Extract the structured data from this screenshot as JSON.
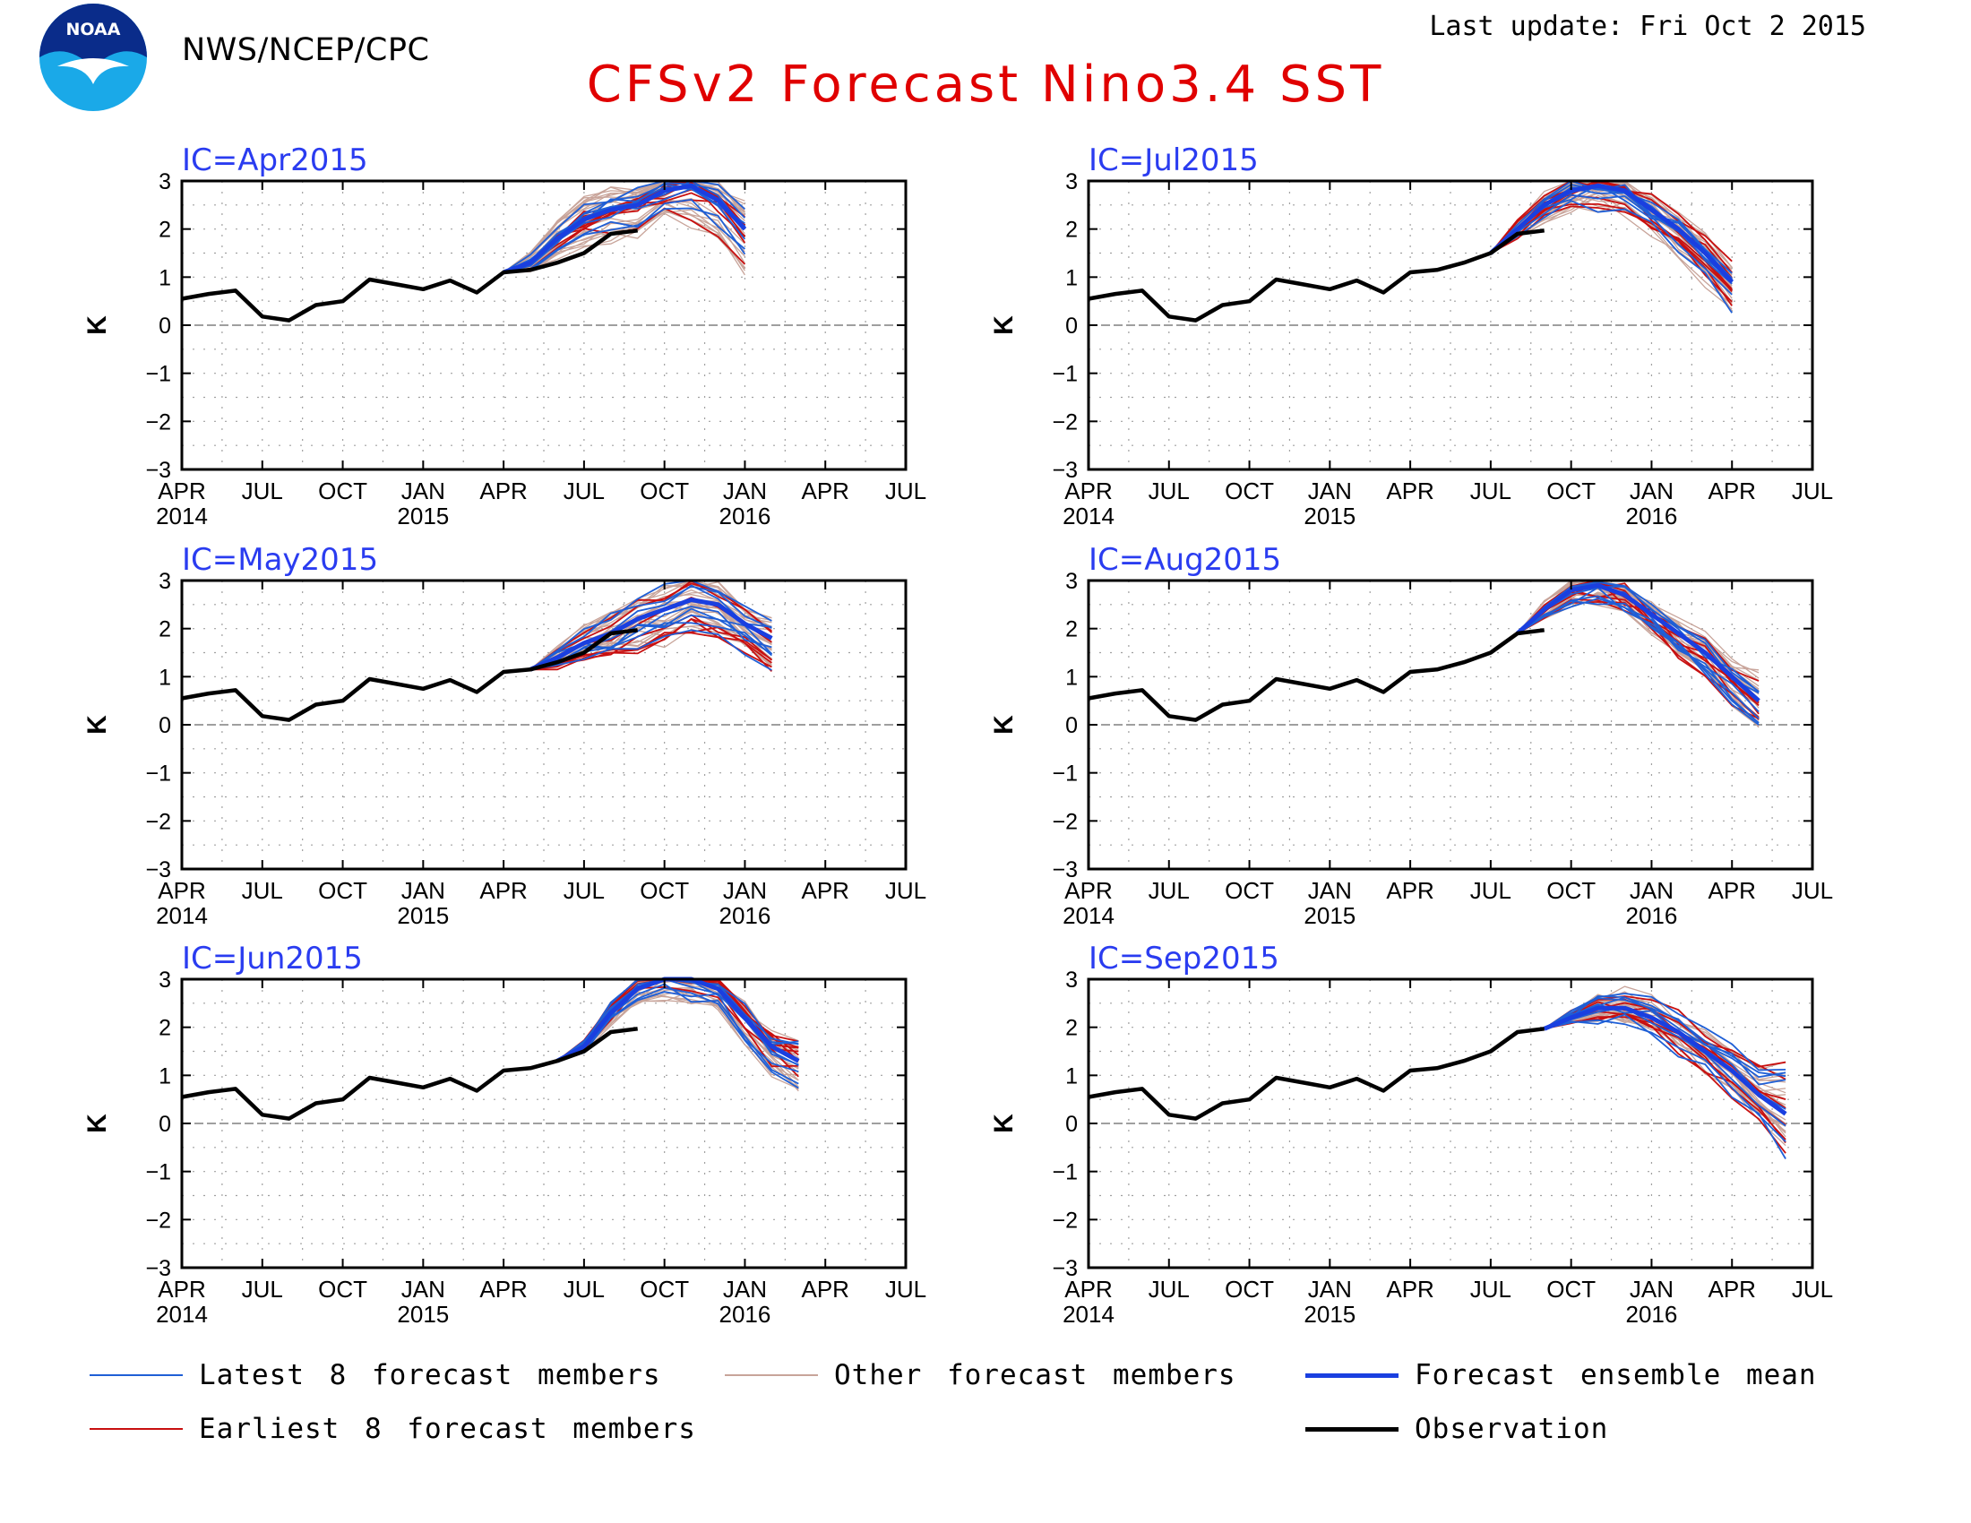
{
  "header": {
    "agency": "NWS/NCEP/CPC",
    "last_update": "Last update: Fri Oct 2 2015",
    "title": "CFSv2 Forecast Nino3.4 SST",
    "logo_text": "NOAA"
  },
  "colors": {
    "latest": "#1f5fd6",
    "earliest": "#c81010",
    "other": "#c8a49a",
    "mean": "#1a3fe0",
    "obs": "#000000",
    "panel_title": "#2a3cf0",
    "main_title": "#e00000"
  },
  "legend": {
    "latest": "Latest 8 forecast members",
    "other": "Other forecast members",
    "mean": "Forecast ensemble mean",
    "earliest": "Earliest 8 forecast members",
    "obs": "Observation"
  },
  "chart_data": {
    "type": "line",
    "ylabel": "K",
    "ylim": [
      -3,
      3
    ],
    "yticks": [
      "3",
      "2",
      "1",
      "0",
      "−1",
      "−2",
      "−3"
    ],
    "xtick_labels": [
      "APR",
      "JUL",
      "OCT",
      "JAN",
      "APR",
      "JUL",
      "OCT",
      "JAN",
      "APR",
      "JUL"
    ],
    "xyear_labels": [
      {
        "month": "APR",
        "year": "2014"
      },
      {
        "month": "JAN",
        "year": "2015"
      },
      {
        "month": "JAN",
        "year": "2016"
      }
    ],
    "xrange": [
      "2014-04",
      "2016-07"
    ],
    "grid": true,
    "observation": {
      "months": [
        "2014-04",
        "2014-05",
        "2014-06",
        "2014-07",
        "2014-08",
        "2014-09",
        "2014-10",
        "2014-11",
        "2014-12",
        "2015-01",
        "2015-02",
        "2015-03",
        "2015-04",
        "2015-05",
        "2015-06",
        "2015-07",
        "2015-08",
        "2015-09"
      ],
      "values": [
        0.55,
        0.65,
        0.72,
        0.18,
        0.1,
        0.42,
        0.5,
        0.95,
        0.85,
        0.75,
        0.93,
        0.68,
        1.1,
        1.15,
        1.3,
        1.5,
        1.9,
        1.97
      ]
    },
    "panels": [
      {
        "title": "IC=Apr2015",
        "obs_end": "2015-09",
        "mean": {
          "start": "2015-04",
          "values": [
            1.1,
            1.3,
            1.8,
            2.2,
            2.4,
            2.5,
            2.8,
            2.9,
            2.6,
            2.0
          ]
        },
        "spread_lo": [
          0,
          0.2,
          0.4,
          0.5,
          0.6,
          0.6,
          0.6,
          0.8,
          0.9,
          1.0
        ],
        "spread_hi": [
          0,
          0.2,
          0.3,
          0.35,
          0.35,
          0.3,
          0.3,
          0.25,
          0.3,
          0.5
        ]
      },
      {
        "title": "IC=May2015",
        "obs_end": "2015-09",
        "mean": {
          "start": "2015-05",
          "values": [
            1.15,
            1.4,
            1.7,
            1.9,
            2.2,
            2.4,
            2.6,
            2.5,
            2.1,
            1.8
          ]
        },
        "spread_lo": [
          0,
          0.2,
          0.3,
          0.45,
          0.6,
          0.65,
          0.6,
          0.6,
          0.55,
          0.6
        ],
        "spread_hi": [
          0,
          0.2,
          0.3,
          0.4,
          0.45,
          0.45,
          0.4,
          0.35,
          0.3,
          0.3
        ]
      },
      {
        "title": "IC=Jun2015",
        "obs_end": "2015-09",
        "mean": {
          "start": "2015-06",
          "values": [
            1.3,
            1.6,
            2.3,
            2.8,
            3.0,
            3.0,
            2.8,
            2.2,
            1.6,
            1.3
          ]
        },
        "spread_lo": [
          0,
          0.1,
          0.2,
          0.3,
          0.35,
          0.4,
          0.4,
          0.5,
          0.5,
          0.5
        ],
        "spread_hi": [
          0,
          0.1,
          0.2,
          0.25,
          0.2,
          0.1,
          0.2,
          0.2,
          0.2,
          0.3
        ]
      },
      {
        "title": "IC=Jul2015",
        "obs_end": "2015-09",
        "mean": {
          "start": "2015-07",
          "values": [
            1.5,
            2.0,
            2.5,
            2.8,
            2.9,
            2.8,
            2.4,
            2.0,
            1.5,
            0.9
          ]
        },
        "spread_lo": [
          0,
          0.2,
          0.3,
          0.35,
          0.4,
          0.4,
          0.45,
          0.5,
          0.55,
          0.6
        ],
        "spread_hi": [
          0,
          0.15,
          0.2,
          0.2,
          0.15,
          0.15,
          0.2,
          0.25,
          0.3,
          0.4
        ]
      },
      {
        "title": "IC=Aug2015",
        "obs_end": "2015-09",
        "mean": {
          "start": "2015-08",
          "values": [
            1.9,
            2.4,
            2.8,
            2.9,
            2.7,
            2.3,
            1.9,
            1.5,
            1.0,
            0.5
          ]
        },
        "spread_lo": [
          0,
          0.2,
          0.3,
          0.3,
          0.3,
          0.35,
          0.4,
          0.45,
          0.55,
          0.6
        ],
        "spread_hi": [
          0,
          0.15,
          0.15,
          0.1,
          0.15,
          0.2,
          0.25,
          0.3,
          0.35,
          0.6
        ]
      },
      {
        "title": "IC=Sep2015",
        "obs_end": "2015-09",
        "mean": {
          "start": "2015-09",
          "values": [
            1.97,
            2.2,
            2.4,
            2.4,
            2.2,
            1.9,
            1.5,
            1.1,
            0.6,
            0.2
          ]
        },
        "spread_lo": [
          0,
          0.15,
          0.25,
          0.3,
          0.35,
          0.4,
          0.45,
          0.5,
          0.6,
          0.9
        ],
        "spread_hi": [
          0,
          0.1,
          0.2,
          0.3,
          0.35,
          0.35,
          0.4,
          0.45,
          0.55,
          1.1
        ]
      }
    ]
  }
}
